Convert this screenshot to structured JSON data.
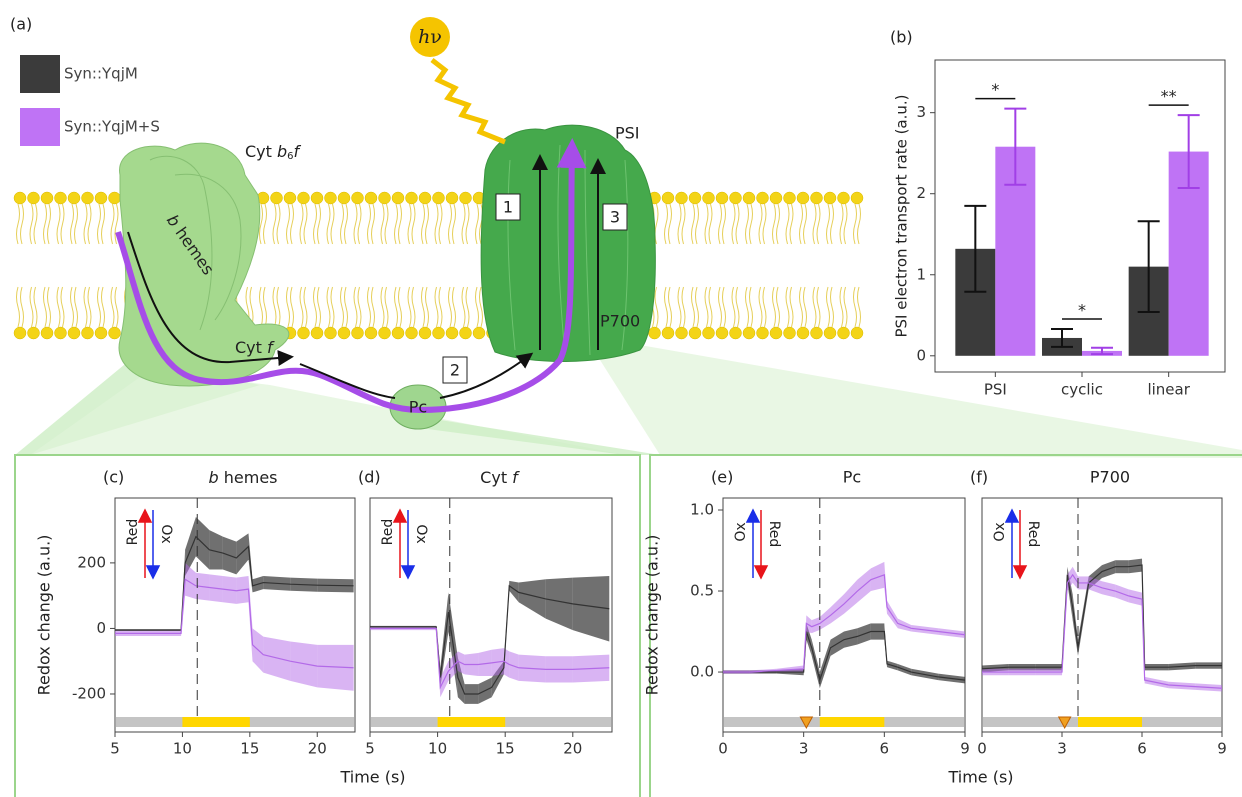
{
  "diagram": {
    "panel_label": "(a)",
    "hv": [
      "h",
      "ν"
    ],
    "cyt_b6f": [
      "Cyt ",
      "b",
      "6",
      "f"
    ],
    "b_hemes": [
      "b",
      " hemes"
    ],
    "cyt_f": [
      "Cyt ",
      "f"
    ],
    "pc": "Pc",
    "psi": "PSI",
    "p700": "P700",
    "steps": [
      "1",
      "2",
      "3"
    ]
  },
  "chart_data": [
    {
      "type": "bar",
      "panel_label": "(b)",
      "y_label": "PSI electron transport rate (a.u.)",
      "categories": [
        "PSI",
        "cyclic",
        "linear"
      ],
      "series": [
        {
          "name": "Syn::YqjM",
          "color": "#3b3b3b",
          "values": [
            1.32,
            0.22,
            1.1
          ],
          "errors": [
            0.53,
            0.11,
            0.56
          ]
        },
        {
          "name": "Syn::YqjM+S",
          "color": "#bf73f5",
          "values": [
            2.58,
            0.06,
            2.52
          ],
          "errors": [
            0.47,
            0.04,
            0.45
          ]
        }
      ],
      "significance": [
        "*",
        "*",
        "**"
      ],
      "ylim": [
        -0.2,
        3.65
      ],
      "yticks": [
        0,
        1,
        2,
        3
      ]
    },
    {
      "type": "line",
      "panel_label": "(c)",
      "title": [
        "b",
        " hemes"
      ],
      "y_label": "Redox change (a.u.)",
      "x_label": "Time (s)",
      "x": [
        5,
        9.9,
        10.2,
        11,
        12,
        13,
        14,
        14.9,
        15.2,
        16,
        18,
        20,
        22.7
      ],
      "series": [
        {
          "color": "#333333",
          "values": [
            -5,
            -5,
            200,
            280,
            240,
            230,
            215,
            250,
            130,
            140,
            135,
            132,
            130
          ],
          "errors": [
            3,
            3,
            40,
            60,
            60,
            50,
            50,
            40,
            20,
            20,
            20,
            20,
            20
          ]
        },
        {
          "color": "#b36ae8",
          "values": [
            -15,
            -15,
            150,
            130,
            125,
            120,
            115,
            120,
            -50,
            -80,
            -100,
            -115,
            -120
          ],
          "errors": [
            8,
            8,
            50,
            40,
            40,
            40,
            40,
            40,
            50,
            55,
            60,
            65,
            70
          ]
        }
      ],
      "xlim": [
        5,
        22.8
      ],
      "xticks": [
        5,
        10,
        15,
        20
      ],
      "ylim": [
        -316,
        398
      ],
      "yticks": [
        -200,
        0,
        200
      ],
      "light": [
        10,
        15
      ],
      "marker": 11.1,
      "arrow_labels": [
        "Red",
        "Ox"
      ]
    },
    {
      "type": "line",
      "panel_label": "(d)",
      "title": [
        "Cyt ",
        "f"
      ],
      "x": [
        5,
        9.9,
        10.2,
        10.8,
        11.5,
        12,
        13,
        14,
        14.9,
        15.3,
        16,
        18,
        20,
        22.7
      ],
      "series": [
        {
          "color": "#333333",
          "values": [
            5,
            5,
            -150,
            50,
            -150,
            -200,
            -200,
            -180,
            -120,
            130,
            110,
            90,
            75,
            60
          ],
          "errors": [
            3,
            3,
            30,
            60,
            60,
            30,
            30,
            30,
            20,
            15,
            30,
            60,
            80,
            100
          ]
        },
        {
          "color": "#b36ae8",
          "values": [
            0,
            0,
            -180,
            -130,
            -100,
            -110,
            -110,
            -105,
            -100,
            -110,
            -120,
            -125,
            -125,
            -120
          ],
          "errors": [
            5,
            5,
            30,
            30,
            30,
            30,
            35,
            40,
            40,
            40,
            40,
            40,
            40,
            40
          ]
        }
      ],
      "xlim": [
        5,
        22.9
      ],
      "xticks": [
        5,
        10,
        15,
        20
      ],
      "ylim": [
        -316,
        398
      ],
      "light": [
        10,
        15
      ],
      "marker": 10.9,
      "arrow_labels": [
        "Red",
        "Ox"
      ]
    },
    {
      "type": "line",
      "panel_label": "(e)",
      "title": "Pc",
      "y_label": "Redox change (a.u.)",
      "x_label": "Time (s)",
      "x": [
        0,
        1,
        2,
        3,
        3.1,
        3.3,
        3.6,
        4,
        4.5,
        5,
        5.5,
        6,
        6.1,
        6.5,
        7,
        8,
        9
      ],
      "series": [
        {
          "color": "#333333",
          "values": [
            0,
            0,
            0,
            0,
            0.25,
            0.15,
            -0.05,
            0.15,
            0.2,
            0.22,
            0.25,
            0.25,
            0.05,
            0.03,
            0,
            -0.03,
            -0.05
          ],
          "errors": [
            0.01,
            0.01,
            0.01,
            0.02,
            0.05,
            0.05,
            0.05,
            0.05,
            0.05,
            0.05,
            0.05,
            0.05,
            0.02,
            0.02,
            0.02,
            0.02,
            0.02
          ]
        },
        {
          "color": "#b36ae8",
          "values": [
            0,
            0,
            0.01,
            0.02,
            0.3,
            0.28,
            0.3,
            0.35,
            0.42,
            0.5,
            0.57,
            0.6,
            0.4,
            0.3,
            0.27,
            0.25,
            0.23
          ],
          "errors": [
            0.01,
            0.01,
            0.01,
            0.02,
            0.05,
            0.04,
            0.04,
            0.05,
            0.06,
            0.07,
            0.07,
            0.08,
            0.04,
            0.03,
            0.02,
            0.02,
            0.02
          ]
        }
      ],
      "xlim": [
        0,
        9
      ],
      "xticks": [
        0,
        3,
        6,
        9
      ],
      "ylim": [
        -0.37,
        1.074
      ],
      "yticks": [
        {
          "value": 0,
          "label": "0.0"
        },
        {
          "value": 0.5,
          "label": "0.5"
        },
        {
          "value": 1,
          "label": "1.0"
        }
      ],
      "light": [
        3.6,
        6
      ],
      "marker": 3.6,
      "trigger": 3.1,
      "arrow_labels": [
        "Ox",
        "Red"
      ]
    },
    {
      "type": "line",
      "panel_label": "(f)",
      "title": "P700",
      "x": [
        0,
        1,
        2,
        3,
        3.2,
        3.4,
        3.6,
        4,
        4.5,
        5,
        5.5,
        6,
        6.1,
        7,
        8,
        9
      ],
      "series": [
        {
          "color": "#333333",
          "values": [
            0.02,
            0.03,
            0.03,
            0.03,
            0.6,
            0.4,
            0.15,
            0.55,
            0.62,
            0.65,
            0.65,
            0.66,
            0.03,
            0.03,
            0.04,
            0.04
          ],
          "errors": [
            0.02,
            0.02,
            0.02,
            0.02,
            0.05,
            0.08,
            0.05,
            0.04,
            0.04,
            0.04,
            0.04,
            0.04,
            0.02,
            0.02,
            0.02,
            0.02
          ]
        },
        {
          "color": "#b36ae8",
          "values": [
            0,
            0,
            0,
            0,
            0.55,
            0.6,
            0.55,
            0.55,
            0.52,
            0.5,
            0.47,
            0.45,
            -0.05,
            -0.08,
            -0.09,
            -0.1
          ],
          "errors": [
            0.02,
            0.02,
            0.02,
            0.02,
            0.05,
            0.05,
            0.04,
            0.04,
            0.04,
            0.04,
            0.04,
            0.04,
            0.02,
            0.02,
            0.02,
            0.02
          ]
        }
      ],
      "xlim": [
        0,
        9
      ],
      "xticks": [
        0,
        3,
        6,
        9
      ],
      "ylim": [
        -0.37,
        1.074
      ],
      "light": [
        3.6,
        6
      ],
      "marker": 3.6,
      "trigger": 3.1,
      "arrow_labels": [
        "Ox",
        "Red"
      ]
    }
  ]
}
